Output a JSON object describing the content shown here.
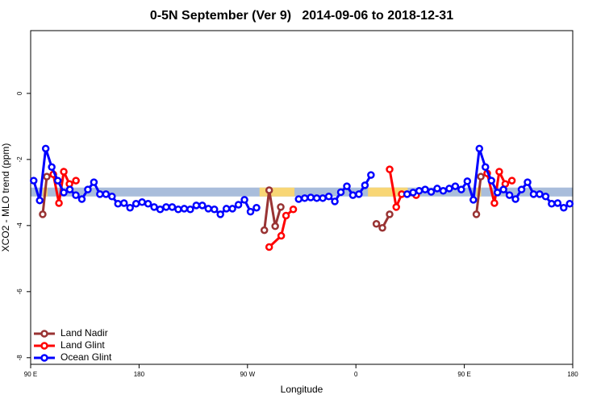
{
  "chart_data": {
    "type": "line",
    "title": "0-5N September (Ver 9)   2014-09-06 to 2018-12-31",
    "x_label": "Longitude",
    "y_label": "XCO2 - MLO trend (ppm)",
    "xlim": [
      90,
      540
    ],
    "ylim": [
      -8.2,
      1.9
    ],
    "xticks": [
      {
        "value": 90,
        "label": "90 E"
      },
      180,
      {
        "value": 270,
        "label": "90 W"
      },
      {
        "value": 360,
        "label": "0"
      },
      {
        "value": 450,
        "label": "90 E"
      },
      {
        "value": 540,
        "label": "180"
      }
    ],
    "yticks": [
      0,
      -2,
      -4,
      -6,
      -8
    ],
    "legend": "bottom-left",
    "reference_band": {
      "ylim": [
        -3.12,
        -2.85
      ],
      "color": "#a9bddb",
      "highlight_color": "#f8d675",
      "highlight_ranges": [
        [
          100,
          104
        ],
        [
          280,
          309
        ],
        [
          370,
          403
        ],
        [
          460,
          464
        ]
      ]
    },
    "series": [
      {
        "name": "Land Nadir",
        "color": "#993333",
        "x": [
          100,
          103.4,
          200,
          284,
          288,
          293,
          297.6,
          340,
          377,
          382,
          388,
          420,
          460,
          463.7
        ],
        "values": [
          -3.66,
          -2.52,
          null,
          -4.14,
          -2.93,
          -4.02,
          -3.44,
          null,
          -3.95,
          -4.07,
          -3.66,
          null,
          -3.66,
          -2.52
        ]
      },
      {
        "name": "Land Glint",
        "color": "#ff0000",
        "x": [
          108.8,
          113.5,
          117.5,
          122.2,
          127.6,
          200,
          288,
          298,
          302,
          308,
          340,
          388,
          393.5,
          398,
          410,
          450,
          469,
          475,
          479,
          484,
          489.5
        ],
        "values": [
          -2.45,
          -3.32,
          -2.37,
          -2.74,
          -2.64,
          null,
          -4.65,
          -4.31,
          -3.7,
          -3.51,
          null,
          -2.3,
          -3.44,
          -3.05,
          -3.08,
          null,
          -2.42,
          -3.32,
          -2.37,
          -2.74,
          -2.64
        ]
      },
      {
        "name": "Ocean Glint",
        "color": "#0000ff",
        "x": [
          92.5,
          97.5,
          102.5,
          107.5,
          112.5,
          117.5,
          122.5,
          127.5,
          132.5,
          137.5,
          142.5,
          147.5,
          152.5,
          157.5,
          162.5,
          167.5,
          172.5,
          177.5,
          182.5,
          187.5,
          192.5,
          197.5,
          202.5,
          207.5,
          212.5,
          217.5,
          222.5,
          227.5,
          232.5,
          237.5,
          242.5,
          247.5,
          252.5,
          257.5,
          262.5,
          267.5,
          272.5,
          277.5,
          295,
          312.5,
          317.5,
          322.5,
          327.5,
          332.5,
          337.5,
          342.5,
          347.5,
          352.5,
          357.5,
          362.5,
          367.5,
          372.5,
          387.5,
          402.5,
          407.5,
          412.5,
          417.5,
          422.5,
          427.5,
          432.5,
          437.5,
          442.5,
          447.5,
          452.5,
          457.5,
          462.5,
          467.5,
          472.5,
          477.5,
          482.5,
          487.5,
          492.5,
          497.5,
          502.5,
          507.5,
          512.5,
          517.5,
          522.5,
          527.5,
          532.5,
          537.5
        ],
        "values": [
          -2.64,
          -3.24,
          -1.67,
          -2.23,
          -2.64,
          -3.0,
          -2.91,
          -3.08,
          -3.2,
          -2.91,
          -2.69,
          -3.05,
          -3.05,
          -3.12,
          -3.34,
          -3.32,
          -3.46,
          -3.34,
          -3.29,
          -3.34,
          -3.44,
          -3.51,
          -3.44,
          -3.44,
          -3.51,
          -3.49,
          -3.51,
          -3.39,
          -3.39,
          -3.49,
          -3.51,
          -3.66,
          -3.49,
          -3.49,
          -3.37,
          -3.22,
          -3.58,
          -3.46,
          null,
          -3.2,
          -3.17,
          -3.15,
          -3.17,
          -3.17,
          -3.12,
          -3.27,
          -2.99,
          -2.81,
          -3.08,
          -3.05,
          -2.78,
          -2.47,
          null,
          -3.05,
          -3.0,
          -2.95,
          -2.91,
          -2.98,
          -2.88,
          -2.95,
          -2.88,
          -2.81,
          -2.91,
          -2.66,
          -3.22,
          -1.67,
          -2.23,
          -2.64,
          -3.0,
          -2.91,
          -3.08,
          -3.2,
          -2.91,
          -2.69,
          -3.05,
          -3.05,
          -3.12,
          -3.34,
          -3.32,
          -3.46,
          -3.34
        ]
      }
    ]
  }
}
